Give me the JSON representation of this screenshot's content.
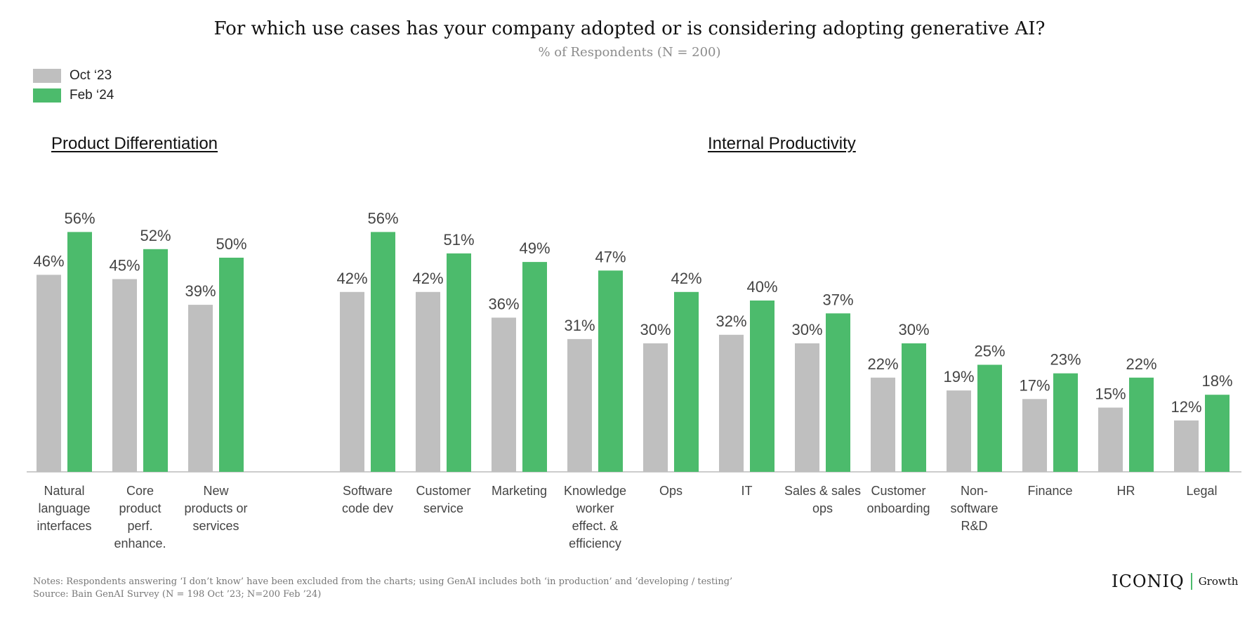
{
  "title": "For which use cases has your company adopted or is considering adopting generative AI?",
  "subtitle": "% of Respondents (N = 200)",
  "colors": {
    "oct": "#bfbfbf",
    "feb": "#4cbb6c",
    "axis": "#cccccc",
    "label": "#444444"
  },
  "legend": [
    {
      "label": "Oct ‘23",
      "color": "#bfbfbf"
    },
    {
      "label": "Feb ‘24",
      "color": "#4cbb6c"
    }
  ],
  "groups": [
    {
      "heading": "Product Differentiation"
    },
    {
      "heading": "Internal Productivity"
    }
  ],
  "chart_data": {
    "type": "bar",
    "series": [
      {
        "name": "Oct ‘23",
        "values": [
          46,
          45,
          39,
          42,
          42,
          36,
          31,
          30,
          32,
          30,
          22,
          19,
          17,
          15,
          12
        ]
      },
      {
        "name": "Feb ‘24",
        "values": [
          56,
          52,
          50,
          56,
          51,
          49,
          47,
          42,
          40,
          37,
          30,
          25,
          23,
          22,
          18
        ]
      }
    ],
    "categories": [
      [
        "Natural",
        "language",
        "interfaces"
      ],
      [
        "Core",
        "product",
        "perf.",
        "enhance."
      ],
      [
        "New",
        "products or",
        "services"
      ],
      [
        "Software",
        "code dev"
      ],
      [
        "Customer",
        "service"
      ],
      [
        "Marketing"
      ],
      [
        "Knowledge",
        "worker",
        "effect. &",
        "efficiency"
      ],
      [
        "Ops"
      ],
      [
        "IT"
      ],
      [
        "Sales & sales",
        "ops"
      ],
      [
        "Customer",
        "onboarding"
      ],
      [
        "Non-",
        "software",
        "R&D"
      ],
      [
        "Finance"
      ],
      [
        "HR"
      ],
      [
        "Legal"
      ]
    ],
    "group_index": [
      0,
      0,
      0,
      1,
      1,
      1,
      1,
      1,
      1,
      1,
      1,
      1,
      1,
      1,
      1
    ],
    "value_suffix": "%",
    "ylim": [
      0,
      60
    ],
    "grid": false,
    "legend_position": "top-left"
  },
  "notes": {
    "line1": "Notes: Respondents answering ‘I don’t know’ have been excluded from the charts; using GenAI includes both ‘in production’ and ‘developing / testing’",
    "line2": "Source: Bain GenAI Survey (N = 198 Oct ’23; N=200 Feb ’24)"
  },
  "logo": {
    "main": "ICONIQ",
    "sub": "Growth"
  }
}
